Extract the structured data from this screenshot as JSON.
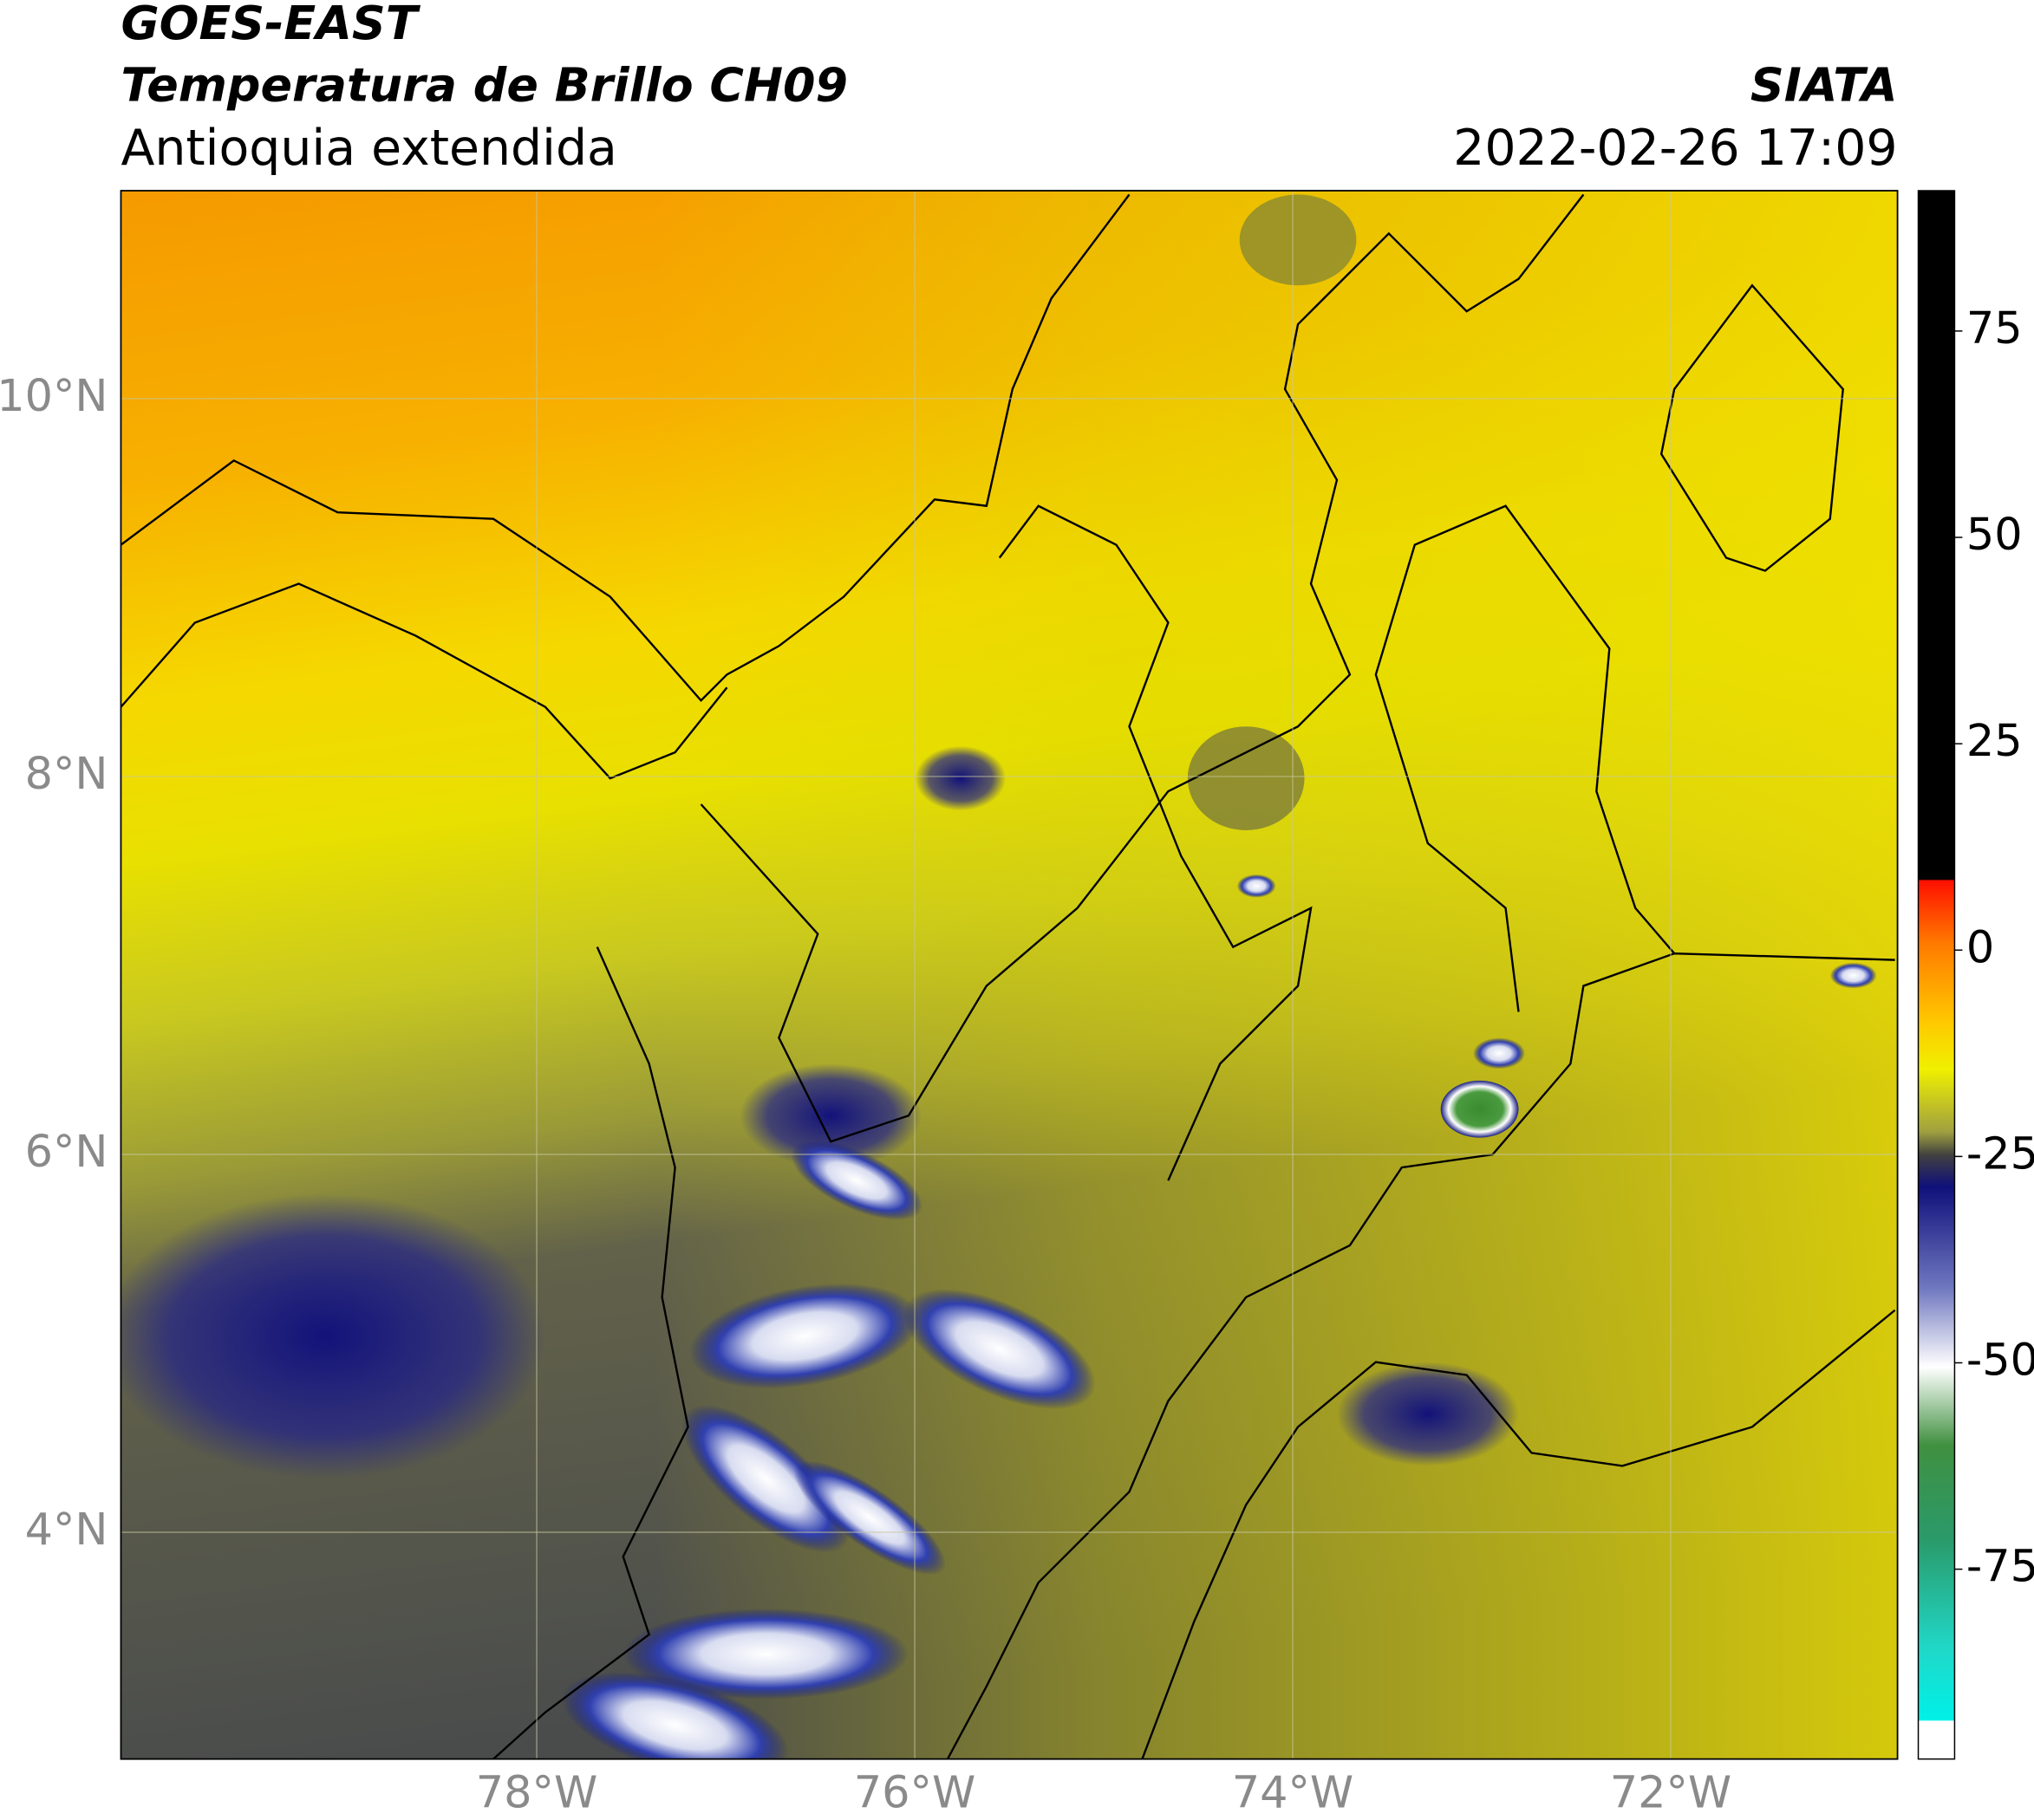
{
  "header": {
    "title": "GOES-EAST",
    "subtitle": "Temperatura de Brillo CH09",
    "region": "Antioquia extendida",
    "source": "SIATA",
    "timestamp": "2022-02-26 17:09"
  },
  "map": {
    "xlim": [
      -80.2,
      -70.8
    ],
    "ylim": [
      2.8,
      11.1
    ],
    "xticks": [
      {
        "value": -78,
        "label": "78°W"
      },
      {
        "value": -76,
        "label": "76°W"
      },
      {
        "value": -74,
        "label": "74°W"
      },
      {
        "value": -72,
        "label": "72°W"
      }
    ],
    "yticks": [
      {
        "value": 4,
        "label": "4°N"
      },
      {
        "value": 6,
        "label": "6°N"
      },
      {
        "value": 8,
        "label": "8°N"
      },
      {
        "value": 10,
        "label": "10°N"
      }
    ],
    "grid": true
  },
  "colorbar": {
    "lim": [
      -98,
      92
    ],
    "ticks": [
      -75,
      -50,
      -25,
      0,
      25,
      50,
      75
    ]
  }
}
